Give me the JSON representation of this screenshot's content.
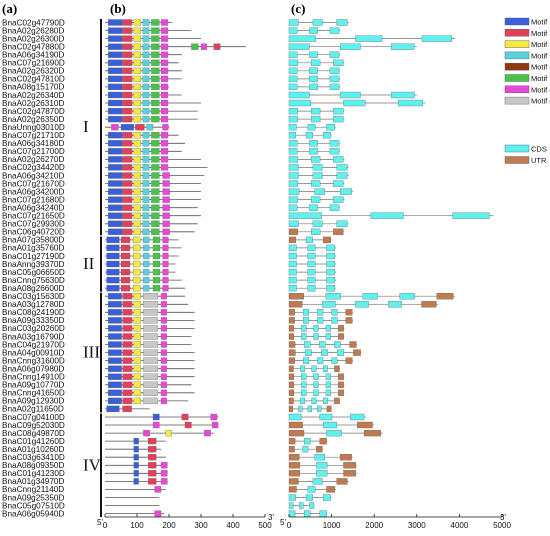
{
  "panels": [
    "(a)",
    "(b)",
    "(c)"
  ],
  "genes": [
    "BnaC02g47790D",
    "BnaA02g26280D",
    "BnaA02g26300D",
    "BnaC02g47880D",
    "BnaA06g34190D",
    "BnaC07g21690D",
    "BnaA02g26320D",
    "BnaC02g47810D",
    "BnaA08g15170D",
    "BnaA02g26340D",
    "BnaA02g26310D",
    "BnaC02g47870D",
    "BnaA02g26350D",
    "BnaUnng03010D",
    "BnaC07g21710D",
    "BnaA06g34180D",
    "BnaC07g21700D",
    "BnaA02g26270D",
    "BnaC02g34420D",
    "BnaA06g34210D",
    "BnaC07g21670D",
    "BnaA06g34200D",
    "BnaC07g21680D",
    "BnaA06g34240D",
    "BnaC07g21650D",
    "BnaC07g29930D",
    "BnaC06g40720D",
    "BnaA07g35800D",
    "BnaA01g35760D",
    "BnaC01g27190D",
    "BnaAnng39370D",
    "BnaC05g06650D",
    "BnaCnng75630D",
    "BnaA08g26600D",
    "BnaC03g15630D",
    "BnaA03g12780D",
    "BnaC08g24190D",
    "BnaA09g33350D",
    "BnaC03g20260D",
    "BnaA03g16790D",
    "BnaC04g21970D",
    "BnaA04g00910D",
    "BnaCnng31600D",
    "BnaA06g07980D",
    "BnaCnng14910D",
    "BnaA09g10770D",
    "BnaCnng41650D",
    "BnaA09g12930D",
    "BnaA02g11650D",
    "BnaC07g04100D",
    "BnaC09g52030D",
    "BnaC08g49870D",
    "BnaC01g41260D",
    "BnaA01g10260D",
    "BnaC03g63410D",
    "BnaA08g09350D",
    "BnaC01g41230D",
    "BnaA01g34970D",
    "BnaCnng21140D",
    "BnaA09g25350D",
    "BnaC05g07510D",
    "BnaA06g05940D"
  ],
  "groups": [
    {
      "label": "I",
      "from": 0,
      "to": 26
    },
    {
      "label": "II",
      "from": 27,
      "to": 33
    },
    {
      "label": "III",
      "from": 34,
      "to": 48
    },
    {
      "label": "IV",
      "from": 49,
      "to": 61
    }
  ],
  "motif_axis": {
    "ticks": [
      0,
      100,
      200,
      300,
      400,
      500
    ],
    "five_prime": "5'",
    "three_prime": "3'"
  },
  "gene_axis": {
    "ticks": [
      0,
      1000,
      2000,
      3000,
      4000,
      5000
    ],
    "five_prime": "5'",
    "three_prime": "3'"
  },
  "legend_motifs": [
    {
      "label": "Motif 1",
      "color": "#3a5fd9"
    },
    {
      "label": "Motif 3",
      "color": "#e0405a"
    },
    {
      "label": "Motif 2",
      "color": "#f2e840"
    },
    {
      "label": "Motif 5",
      "color": "#5ad0dc"
    },
    {
      "label": "Motif 8",
      "color": "#8a3b16"
    },
    {
      "label": "Motif 7",
      "color": "#49c24a"
    },
    {
      "label": "Motif 4",
      "color": "#e848d8"
    },
    {
      "label": "Motif 6",
      "color": "#c8c8c8"
    }
  ],
  "legend_structure": [
    {
      "label": "CDS",
      "color": "#5ff0f0"
    },
    {
      "label": "UTR",
      "color": "#c07a50"
    }
  ]
}
